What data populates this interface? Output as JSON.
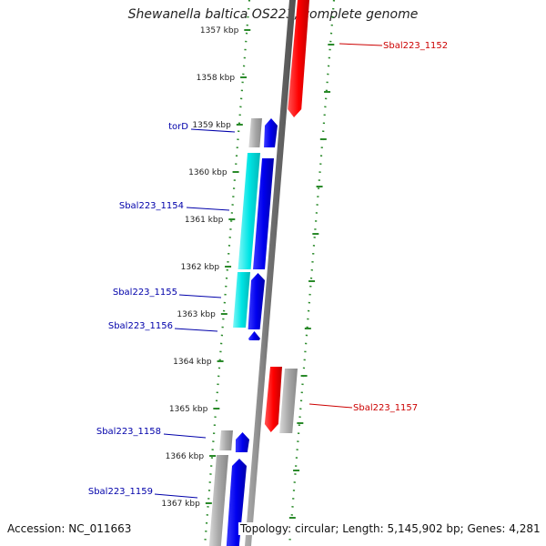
{
  "title": "Shewanella baltica OS223, complete genome",
  "accession": "Accession: NC_011663",
  "stats": "Topology: circular; Length: 5,145,902 bp; Genes: 4,281",
  "colors": {
    "backbone": "#808080",
    "tick": "#2a8a2a",
    "forward_gene": "#ff0000",
    "reverse_gene": "#0000ee",
    "reverse_cds_alt": "#00e5e5",
    "pseudo": "#a8a8a8",
    "label_forward": "#cc0000",
    "label_reverse": "#0000aa"
  },
  "kbp_ticks": [
    {
      "label": "1357 kbp"
    },
    {
      "label": "1358 kbp"
    },
    {
      "label": "1359 kbp"
    },
    {
      "label": "1360 kbp"
    },
    {
      "label": "1361 kbp"
    },
    {
      "label": "1362 kbp"
    },
    {
      "label": "1363 kbp"
    },
    {
      "label": "1364 kbp"
    },
    {
      "label": "1365 kbp"
    },
    {
      "label": "1366 kbp"
    },
    {
      "label": "1367 kbp"
    }
  ],
  "gene_labels": [
    {
      "text": "Sbal223_1152",
      "strand": "forward"
    },
    {
      "text": "torD",
      "strand": "reverse"
    },
    {
      "text": "Sbal223_1154",
      "strand": "reverse"
    },
    {
      "text": "Sbal223_1155",
      "strand": "reverse"
    },
    {
      "text": "Sbal223_1156",
      "strand": "reverse"
    },
    {
      "text": "Sbal223_1157",
      "strand": "forward"
    },
    {
      "text": "Sbal223_1158",
      "strand": "reverse"
    },
    {
      "text": "Sbal223_1159",
      "strand": "reverse"
    }
  ]
}
